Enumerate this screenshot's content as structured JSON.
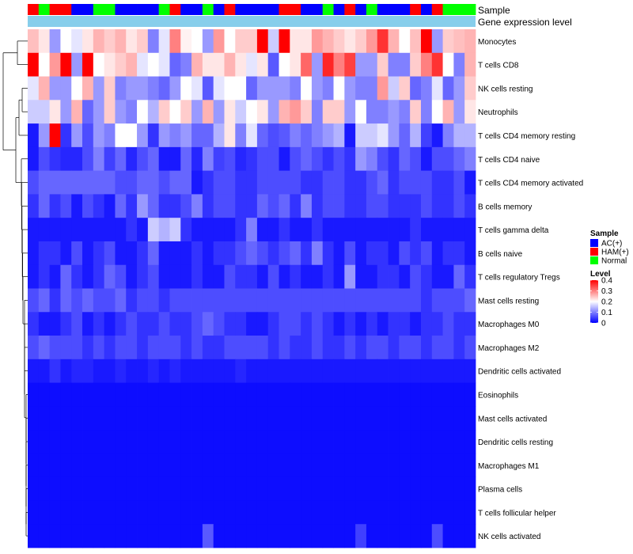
{
  "chart_data": {
    "type": "heatmap",
    "annotation_rows": [
      "Sample",
      "Gene expression level"
    ],
    "rows": [
      "Monocytes",
      "T cells CD8",
      "NK cells resting",
      "Neutrophils",
      "T cells CD4 memory resting",
      "T cells CD4 naive",
      "T cells CD4 memory activated",
      "B cells memory",
      "T cells gamma delta",
      "B cells naive",
      "T cells regulatory  Tregs",
      "Mast cells resting",
      "Macrophages M0",
      "Macrophages M2",
      "Dendritic cells activated",
      "Eosinophils",
      "Mast cells activated",
      "Dendritic cells resting",
      "Macrophages M1",
      "Plasma cells",
      "T cells follicular helper",
      "NK cells activated"
    ],
    "sample_groups": [
      "H",
      "G",
      "H",
      "H",
      "B",
      "B",
      "G",
      "G",
      "B",
      "B",
      "B",
      "B",
      "G",
      "H",
      "B",
      "B",
      "G",
      "B",
      "H",
      "B",
      "B",
      "B",
      "B",
      "H",
      "H",
      "B",
      "B",
      "G",
      "B",
      "H",
      "B",
      "G",
      "B",
      "B",
      "B",
      "H",
      "B",
      "H",
      "G",
      "G",
      "G"
    ],
    "values": [
      [
        0.25,
        0.22,
        0.12,
        0.2,
        0.18,
        0.22,
        0.26,
        0.24,
        0.26,
        0.22,
        0.24,
        0.1,
        0.18,
        0.3,
        0.21,
        0.2,
        0.12,
        0.28,
        0.2,
        0.24,
        0.24,
        0.4,
        0.16,
        0.4,
        0.22,
        0.22,
        0.28,
        0.26,
        0.24,
        0.22,
        0.24,
        0.28,
        0.36,
        0.26,
        0.2,
        0.25,
        0.4,
        0.12,
        0.24,
        0.25,
        0.26
      ],
      [
        0.4,
        0.2,
        0.28,
        0.4,
        0.12,
        0.4,
        0.2,
        0.22,
        0.24,
        0.26,
        0.18,
        0.2,
        0.18,
        0.08,
        0.1,
        0.26,
        0.22,
        0.22,
        0.26,
        0.22,
        0.18,
        0.22,
        0.07,
        0.2,
        0.22,
        0.32,
        0.12,
        0.37,
        0.3,
        0.35,
        0.12,
        0.12,
        0.24,
        0.1,
        0.1,
        0.24,
        0.3,
        0.36,
        0.2,
        0.1,
        0.26
      ],
      [
        0.18,
        0.26,
        0.12,
        0.12,
        0.2,
        0.26,
        0.12,
        0.24,
        0.1,
        0.12,
        0.12,
        0.1,
        0.08,
        0.12,
        0.2,
        0.18,
        0.07,
        0.18,
        0.2,
        0.2,
        0.08,
        0.12,
        0.12,
        0.12,
        0.1,
        0.2,
        0.12,
        0.1,
        0.2,
        0.12,
        0.1,
        0.1,
        0.28,
        0.16,
        0.24,
        0.08,
        0.1,
        0.18,
        0.08,
        0.12,
        0.24
      ],
      [
        0.16,
        0.16,
        0.22,
        0.12,
        0.26,
        0.08,
        0.12,
        0.24,
        0.12,
        0.1,
        0.2,
        0.14,
        0.24,
        0.2,
        0.24,
        0.12,
        0.26,
        0.12,
        0.22,
        0.16,
        0.2,
        0.22,
        0.12,
        0.26,
        0.28,
        0.24,
        0.1,
        0.24,
        0.24,
        0.12,
        0.2,
        0.1,
        0.1,
        0.12,
        0.1,
        0.24,
        0.1,
        0.2,
        0.26,
        0.12,
        0.22
      ],
      [
        0.02,
        0.12,
        0.4,
        0.04,
        0.12,
        0.06,
        0.12,
        0.1,
        0.2,
        0.2,
        0.12,
        0.04,
        0.12,
        0.1,
        0.12,
        0.08,
        0.08,
        0.14,
        0.22,
        0.1,
        0.18,
        0.08,
        0.06,
        0.07,
        0.1,
        0.08,
        0.1,
        0.12,
        0.14,
        0.02,
        0.16,
        0.16,
        0.18,
        0.12,
        0.08,
        0.14,
        0.05,
        0.02,
        0.1,
        0.14,
        0.14
      ],
      [
        0.02,
        0.06,
        0.04,
        0.03,
        0.03,
        0.06,
        0.1,
        0.05,
        0.08,
        0.03,
        0.06,
        0.08,
        0.02,
        0.02,
        0.08,
        0.03,
        0.1,
        0.05,
        0.06,
        0.03,
        0.04,
        0.06,
        0.06,
        0.02,
        0.06,
        0.08,
        0.06,
        0.04,
        0.06,
        0.04,
        0.12,
        0.1,
        0.06,
        0.04,
        0.08,
        0.06,
        0.02,
        0.06,
        0.06,
        0.08,
        0.1
      ],
      [
        0.06,
        0.08,
        0.08,
        0.08,
        0.08,
        0.08,
        0.08,
        0.08,
        0.06,
        0.06,
        0.08,
        0.08,
        0.06,
        0.08,
        0.08,
        0.02,
        0.04,
        0.06,
        0.06,
        0.04,
        0.04,
        0.06,
        0.06,
        0.06,
        0.06,
        0.04,
        0.04,
        0.06,
        0.06,
        0.04,
        0.04,
        0.06,
        0.08,
        0.04,
        0.06,
        0.06,
        0.06,
        0.04,
        0.04,
        0.06,
        0.02
      ],
      [
        0.04,
        0.08,
        0.04,
        0.06,
        0.02,
        0.06,
        0.04,
        0.02,
        0.08,
        0.04,
        0.12,
        0.08,
        0.04,
        0.04,
        0.06,
        0.1,
        0.04,
        0.06,
        0.06,
        0.04,
        0.04,
        0.08,
        0.06,
        0.08,
        0.04,
        0.1,
        0.04,
        0.06,
        0.06,
        0.04,
        0.04,
        0.06,
        0.06,
        0.04,
        0.04,
        0.04,
        0.06,
        0.04,
        0.04,
        0.06,
        0.04
      ],
      [
        0.02,
        0.02,
        0.02,
        0.02,
        0.02,
        0.02,
        0.02,
        0.02,
        0.02,
        0.04,
        0.02,
        0.16,
        0.14,
        0.16,
        0.04,
        0.02,
        0.02,
        0.02,
        0.02,
        0.04,
        0.1,
        0.02,
        0.02,
        0.04,
        0.02,
        0.02,
        0.04,
        0.02,
        0.02,
        0.02,
        0.02,
        0.02,
        0.02,
        0.02,
        0.02,
        0.04,
        0.02,
        0.02,
        0.02,
        0.02,
        0.02
      ],
      [
        0.02,
        0.04,
        0.04,
        0.02,
        0.06,
        0.02,
        0.04,
        0.06,
        0.02,
        0.02,
        0.04,
        0.08,
        0.02,
        0.02,
        0.02,
        0.04,
        0.02,
        0.04,
        0.04,
        0.06,
        0.08,
        0.06,
        0.04,
        0.06,
        0.08,
        0.04,
        0.1,
        0.04,
        0.02,
        0.06,
        0.02,
        0.04,
        0.04,
        0.02,
        0.06,
        0.04,
        0.06,
        0.02,
        0.04,
        0.04,
        0.02
      ],
      [
        0.02,
        0.04,
        0.02,
        0.08,
        0.04,
        0.02,
        0.04,
        0.08,
        0.06,
        0.02,
        0.04,
        0.06,
        0.02,
        0.02,
        0.02,
        0.04,
        0.02,
        0.02,
        0.06,
        0.04,
        0.04,
        0.02,
        0.06,
        0.02,
        0.04,
        0.02,
        0.02,
        0.04,
        0.02,
        0.12,
        0.02,
        0.02,
        0.04,
        0.04,
        0.02,
        0.06,
        0.04,
        0.02,
        0.02,
        0.08,
        0.04
      ],
      [
        0.06,
        0.08,
        0.04,
        0.08,
        0.06,
        0.08,
        0.06,
        0.06,
        0.08,
        0.04,
        0.06,
        0.06,
        0.04,
        0.06,
        0.06,
        0.06,
        0.06,
        0.06,
        0.06,
        0.06,
        0.06,
        0.06,
        0.06,
        0.06,
        0.06,
        0.06,
        0.06,
        0.06,
        0.06,
        0.06,
        0.06,
        0.06,
        0.06,
        0.06,
        0.06,
        0.06,
        0.04,
        0.06,
        0.06,
        0.06,
        0.08
      ],
      [
        0.04,
        0.02,
        0.02,
        0.04,
        0.06,
        0.02,
        0.04,
        0.02,
        0.04,
        0.06,
        0.04,
        0.04,
        0.06,
        0.04,
        0.04,
        0.06,
        0.08,
        0.06,
        0.04,
        0.04,
        0.02,
        0.02,
        0.04,
        0.06,
        0.06,
        0.04,
        0.06,
        0.04,
        0.02,
        0.04,
        0.02,
        0.04,
        0.02,
        0.04,
        0.04,
        0.02,
        0.04,
        0.04,
        0.06,
        0.04,
        0.04
      ],
      [
        0.06,
        0.08,
        0.06,
        0.06,
        0.06,
        0.04,
        0.06,
        0.04,
        0.06,
        0.06,
        0.04,
        0.06,
        0.06,
        0.06,
        0.04,
        0.06,
        0.04,
        0.04,
        0.06,
        0.06,
        0.06,
        0.06,
        0.04,
        0.06,
        0.04,
        0.04,
        0.06,
        0.04,
        0.04,
        0.06,
        0.04,
        0.06,
        0.06,
        0.04,
        0.06,
        0.06,
        0.04,
        0.06,
        0.06,
        0.04,
        0.06
      ],
      [
        0.02,
        0.02,
        0.04,
        0.02,
        0.03,
        0.03,
        0.02,
        0.02,
        0.03,
        0.02,
        0.02,
        0.03,
        0.02,
        0.03,
        0.02,
        0.02,
        0.02,
        0.02,
        0.02,
        0.03,
        0.02,
        0.02,
        0.02,
        0.02,
        0.02,
        0.02,
        0.02,
        0.02,
        0.02,
        0.02,
        0.02,
        0.02,
        0.02,
        0.02,
        0.02,
        0.02,
        0.02,
        0.02,
        0.02,
        0.02,
        0.02
      ],
      [
        0.01,
        0.01,
        0.01,
        0.01,
        0.01,
        0.01,
        0.01,
        0.01,
        0.01,
        0.01,
        0.01,
        0.01,
        0.01,
        0.01,
        0.01,
        0.01,
        0.01,
        0.01,
        0.01,
        0.01,
        0.01,
        0.01,
        0.01,
        0.01,
        0.01,
        0.01,
        0.01,
        0.01,
        0.01,
        0.01,
        0.01,
        0.01,
        0.01,
        0.01,
        0.01,
        0.01,
        0.01,
        0.01,
        0.01,
        0.01,
        0.01
      ],
      [
        0.01,
        0.01,
        0.01,
        0.01,
        0.01,
        0.01,
        0.01,
        0.01,
        0.01,
        0.01,
        0.01,
        0.01,
        0.01,
        0.01,
        0.01,
        0.01,
        0.01,
        0.01,
        0.01,
        0.01,
        0.01,
        0.01,
        0.01,
        0.01,
        0.01,
        0.01,
        0.01,
        0.01,
        0.01,
        0.01,
        0.01,
        0.01,
        0.01,
        0.01,
        0.01,
        0.01,
        0.01,
        0.01,
        0.01,
        0.01,
        0.01
      ],
      [
        0.01,
        0.01,
        0.01,
        0.01,
        0.01,
        0.01,
        0.01,
        0.01,
        0.01,
        0.01,
        0.01,
        0.01,
        0.01,
        0.01,
        0.01,
        0.01,
        0.01,
        0.01,
        0.01,
        0.01,
        0.01,
        0.01,
        0.01,
        0.01,
        0.01,
        0.01,
        0.01,
        0.01,
        0.01,
        0.01,
        0.01,
        0.01,
        0.01,
        0.01,
        0.01,
        0.01,
        0.01,
        0.01,
        0.01,
        0.01,
        0.01
      ],
      [
        0.01,
        0.01,
        0.01,
        0.01,
        0.01,
        0.01,
        0.01,
        0.01,
        0.01,
        0.01,
        0.01,
        0.01,
        0.01,
        0.01,
        0.01,
        0.01,
        0.01,
        0.01,
        0.01,
        0.01,
        0.01,
        0.01,
        0.01,
        0.01,
        0.01,
        0.01,
        0.01,
        0.01,
        0.01,
        0.01,
        0.01,
        0.01,
        0.01,
        0.01,
        0.01,
        0.01,
        0.01,
        0.01,
        0.01,
        0.01,
        0.01
      ],
      [
        0.01,
        0.01,
        0.01,
        0.01,
        0.01,
        0.01,
        0.01,
        0.01,
        0.01,
        0.01,
        0.01,
        0.01,
        0.01,
        0.01,
        0.01,
        0.01,
        0.01,
        0.01,
        0.01,
        0.01,
        0.01,
        0.01,
        0.01,
        0.01,
        0.01,
        0.01,
        0.01,
        0.01,
        0.01,
        0.01,
        0.01,
        0.01,
        0.01,
        0.01,
        0.01,
        0.01,
        0.01,
        0.01,
        0.01,
        0.01,
        0.01
      ],
      [
        0.01,
        0.01,
        0.01,
        0.01,
        0.01,
        0.01,
        0.01,
        0.01,
        0.01,
        0.01,
        0.01,
        0.01,
        0.01,
        0.01,
        0.01,
        0.01,
        0.01,
        0.01,
        0.01,
        0.01,
        0.01,
        0.01,
        0.01,
        0.01,
        0.01,
        0.01,
        0.01,
        0.01,
        0.01,
        0.01,
        0.01,
        0.01,
        0.01,
        0.01,
        0.01,
        0.01,
        0.01,
        0.01,
        0.01,
        0.01,
        0.01
      ],
      [
        0.01,
        0.01,
        0.01,
        0.01,
        0.01,
        0.01,
        0.01,
        0.01,
        0.01,
        0.01,
        0.01,
        0.01,
        0.01,
        0.01,
        0.01,
        0.01,
        0.07,
        0.01,
        0.01,
        0.01,
        0.01,
        0.01,
        0.01,
        0.01,
        0.01,
        0.01,
        0.01,
        0.01,
        0.01,
        0.01,
        0.05,
        0.01,
        0.01,
        0.01,
        0.01,
        0.01,
        0.01,
        0.06,
        0.01,
        0.01,
        0.01
      ]
    ],
    "legend": {
      "sample": {
        "title": "Sample",
        "entries": [
          {
            "key": "B",
            "label": "AC(+)",
            "color": "#0000ff"
          },
          {
            "key": "H",
            "label": "HAM(+)",
            "color": "#ff0000"
          },
          {
            "key": "G",
            "label": "Normal",
            "color": "#00ff00"
          }
        ]
      },
      "level": {
        "title": "Level",
        "ticks": [
          0.4,
          0.3,
          0.2,
          0.1,
          0
        ],
        "range": [
          0,
          0.4
        ]
      }
    },
    "colors": {
      "low": "#0000ff",
      "mid": "#ffffff",
      "high": "#ff0000",
      "expression_bar": "#87ceeb",
      "dendrogram": "#000000"
    }
  }
}
